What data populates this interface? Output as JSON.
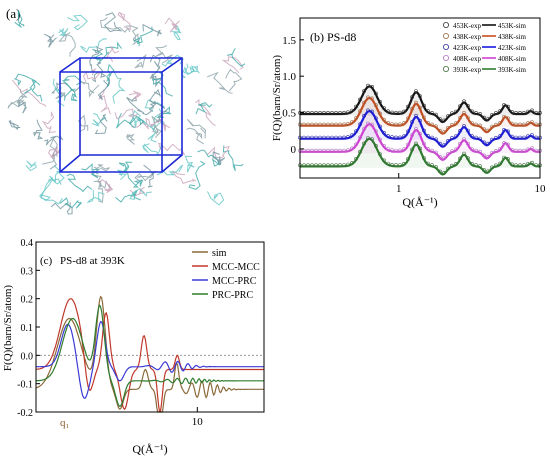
{
  "panels": {
    "a": {
      "label": "(a)"
    },
    "b": {
      "label": "(b) PS-d8"
    },
    "c": {
      "label": "(c)",
      "subtitle": "PS-d8 at 393K",
      "q1_label": "q₁"
    }
  },
  "chart_data": [
    {
      "id": "b",
      "type": "line",
      "xscale": "log",
      "xlim": [
        0.2,
        10
      ],
      "ylim": [
        -0.4,
        1.8
      ],
      "xlabel": "Q(Å⁻¹)",
      "ylabel": "F(Q)(barn/Sr/atom)",
      "xticks": [
        "1",
        "10"
      ],
      "yticks": [
        "0",
        "0.5",
        "1.0",
        "1.5"
      ],
      "legend": "top-right",
      "series": [
        {
          "name": "453K-exp",
          "color": "#333333",
          "offset": 0.58,
          "kind": "exp"
        },
        {
          "name": "453K-sim",
          "color": "#111111",
          "offset": 0.58,
          "kind": "sim"
        },
        {
          "name": "438K-exp",
          "color": "#9a6a45",
          "offset": 0.42,
          "kind": "exp"
        },
        {
          "name": "438K-sim",
          "color": "#c84b1e",
          "offset": 0.42,
          "kind": "sim"
        },
        {
          "name": "423K-exp",
          "color": "#2a2aa8",
          "offset": 0.24,
          "kind": "exp"
        },
        {
          "name": "423K-sim",
          "color": "#1a1ae0",
          "offset": 0.24,
          "kind": "sim"
        },
        {
          "name": "408K-exp",
          "color": "#b070c0",
          "offset": 0.06,
          "kind": "exp"
        },
        {
          "name": "408K-sim",
          "color": "#d43ed4",
          "offset": 0.06,
          "kind": "sim"
        },
        {
          "name": "393K-exp",
          "color": "#3c6a3c",
          "offset": -0.14,
          "kind": "exp"
        },
        {
          "name": "393K-sim",
          "color": "#2e7d2e",
          "offset": -0.14,
          "kind": "sim"
        }
      ]
    },
    {
      "id": "c",
      "type": "line",
      "xscale": "log",
      "xlim": [
        0.35,
        40
      ],
      "ylim": [
        -0.2,
        0.4
      ],
      "xlabel": "Q(Å⁻¹)",
      "ylabel": "F(Q)(barn/Sr/atom)",
      "xticks": [
        "10"
      ],
      "yticks": [
        "-0.2",
        "-0.1",
        "0.0",
        "0.1",
        "0.2",
        "0.3",
        "0.4"
      ],
      "legend": "top-right",
      "series": [
        {
          "name": "sim",
          "color": "#8b6a3a",
          "key": "sim"
        },
        {
          "name": "MCC-MCC",
          "color": "#c0392b",
          "key": "mm"
        },
        {
          "name": "MCC-PRC",
          "color": "#3b3bd6",
          "key": "mp"
        },
        {
          "name": "PRC-PRC",
          "color": "#2e7d2e",
          "key": "pp"
        }
      ]
    }
  ]
}
